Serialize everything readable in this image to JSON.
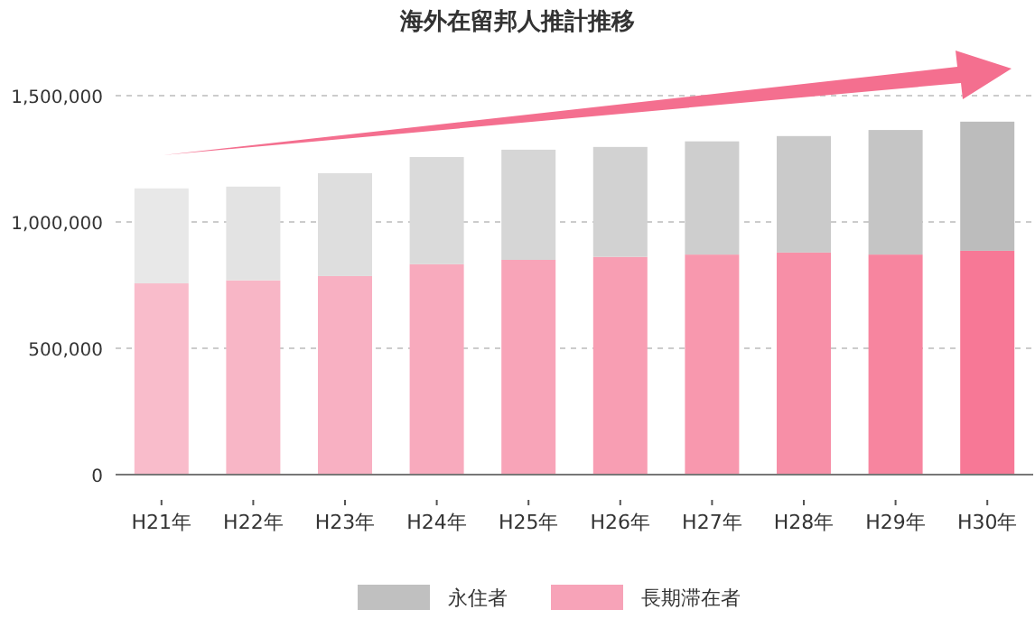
{
  "chart_data": {
    "type": "bar",
    "title": "海外在留邦人推計推移",
    "stacked": true,
    "categories": [
      "H21年",
      "H22年",
      "H23年",
      "H24年",
      "H25年",
      "H26年",
      "H27年",
      "H28年",
      "H29年",
      "H30年"
    ],
    "series": [
      {
        "name": "長期滞在者",
        "color": "#f7a3b8",
        "colors": [
          "#f9bccb",
          "#f8b6c6",
          "#f8b0c2",
          "#f8aabd",
          "#f8a4b8",
          "#f89eb3",
          "#f898ae",
          "#f78fa7",
          "#f7859f",
          "#f77896"
        ],
        "values": [
          757000,
          769000,
          786000,
          833000,
          850000,
          862000,
          871000,
          879000,
          871000,
          886000
        ]
      },
      {
        "name": "永住者",
        "color": "#c0c0c0",
        "colors": [
          "#e8e8e8",
          "#e3e3e3",
          "#dedede",
          "#dadada",
          "#d6d6d6",
          "#d2d2d2",
          "#cecece",
          "#cacaca",
          "#c5c5c5",
          "#bcbcbc"
        ],
        "values": [
          376000,
          371000,
          407000,
          424000,
          436000,
          435000,
          448000,
          461000,
          493000,
          511000
        ]
      }
    ],
    "ylim": [
      0,
      1500000
    ],
    "yticks": [
      0,
      {
        "value": 500000,
        "label": "500,000"
      },
      {
        "value": 1000000,
        "label": "1,000,000"
      },
      {
        "value": 1500000,
        "label": "1,500,000"
      }
    ],
    "grid": "y",
    "legend": "bottom"
  }
}
